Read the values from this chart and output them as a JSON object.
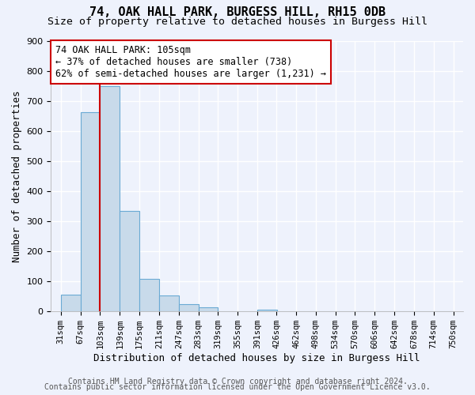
{
  "title1": "74, OAK HALL PARK, BURGESS HILL, RH15 0DB",
  "title2": "Size of property relative to detached houses in Burgess Hill",
  "xlabel": "Distribution of detached houses by size in Burgess Hill",
  "ylabel": "Number of detached properties",
  "bin_edges": [
    31,
    67,
    103,
    139,
    175,
    211,
    247,
    283,
    319,
    355,
    391,
    426,
    462,
    498,
    534,
    570,
    606,
    642,
    678,
    714,
    750
  ],
  "bin_heights": [
    55,
    662,
    750,
    335,
    108,
    52,
    25,
    14,
    0,
    0,
    5,
    0,
    0,
    0,
    0,
    0,
    0,
    0,
    0,
    0
  ],
  "bar_color": "#c8daea",
  "bar_edge_color": "#6aaad4",
  "vline_x": 103,
  "vline_color": "#cc0000",
  "annotation_line1": "74 OAK HALL PARK: 105sqm",
  "annotation_line2": "← 37% of detached houses are smaller (738)",
  "annotation_line3": "62% of semi-detached houses are larger (1,231) →",
  "annotation_box_color": "#ffffff",
  "annotation_box_edge": "#cc0000",
  "ylim": [
    0,
    900
  ],
  "yticks": [
    0,
    100,
    200,
    300,
    400,
    500,
    600,
    700,
    800,
    900
  ],
  "footer1": "Contains HM Land Registry data © Crown copyright and database right 2024.",
  "footer2": "Contains public sector information licensed under the Open Government Licence v3.0.",
  "bg_color": "#eef2fc",
  "grid_color": "#ffffff",
  "title1_fontsize": 11,
  "title2_fontsize": 9.5,
  "xlabel_fontsize": 9,
  "ylabel_fontsize": 9,
  "annotation_fontsize": 8.5,
  "tick_fontsize": 7.5,
  "footer_fontsize": 7
}
